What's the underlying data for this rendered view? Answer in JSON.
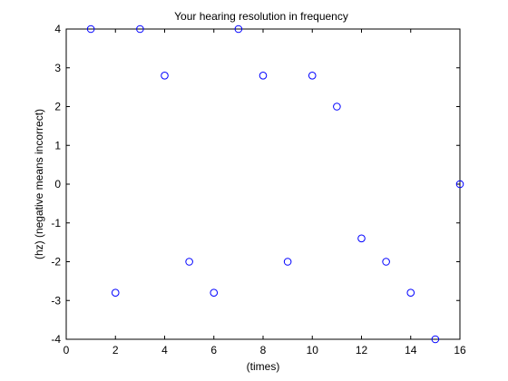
{
  "chart_data": {
    "type": "scatter",
    "title": "Your hearing resolution in frequency",
    "xlabel": "(times)",
    "ylabel": "(hz) (negative means incorrect)",
    "xlim": [
      0,
      16
    ],
    "ylim": [
      -4,
      4
    ],
    "xticks": [
      0,
      2,
      4,
      6,
      8,
      10,
      12,
      14,
      16
    ],
    "yticks": [
      -4,
      -3,
      -2,
      -1,
      0,
      1,
      2,
      3,
      4
    ],
    "xtick_labels": [
      "0",
      "2",
      "4",
      "6",
      "8",
      "10",
      "12",
      "14",
      "16"
    ],
    "ytick_labels": [
      "-4",
      "-3",
      "-2",
      "-1",
      "0",
      "1",
      "2",
      "3",
      "4"
    ],
    "grid": false,
    "marker": "open-circle",
    "marker_color": "#0000ff",
    "series": [
      {
        "x": [
          1,
          2,
          3,
          4,
          5,
          6,
          7,
          8,
          9,
          10,
          11,
          12,
          13,
          14,
          15,
          16
        ],
        "y": [
          4,
          -2.8,
          4,
          2.8,
          -2,
          -2.8,
          4,
          2.8,
          -2,
          2.8,
          2,
          -1.4,
          -2,
          -2.8,
          -4,
          0
        ]
      }
    ]
  }
}
